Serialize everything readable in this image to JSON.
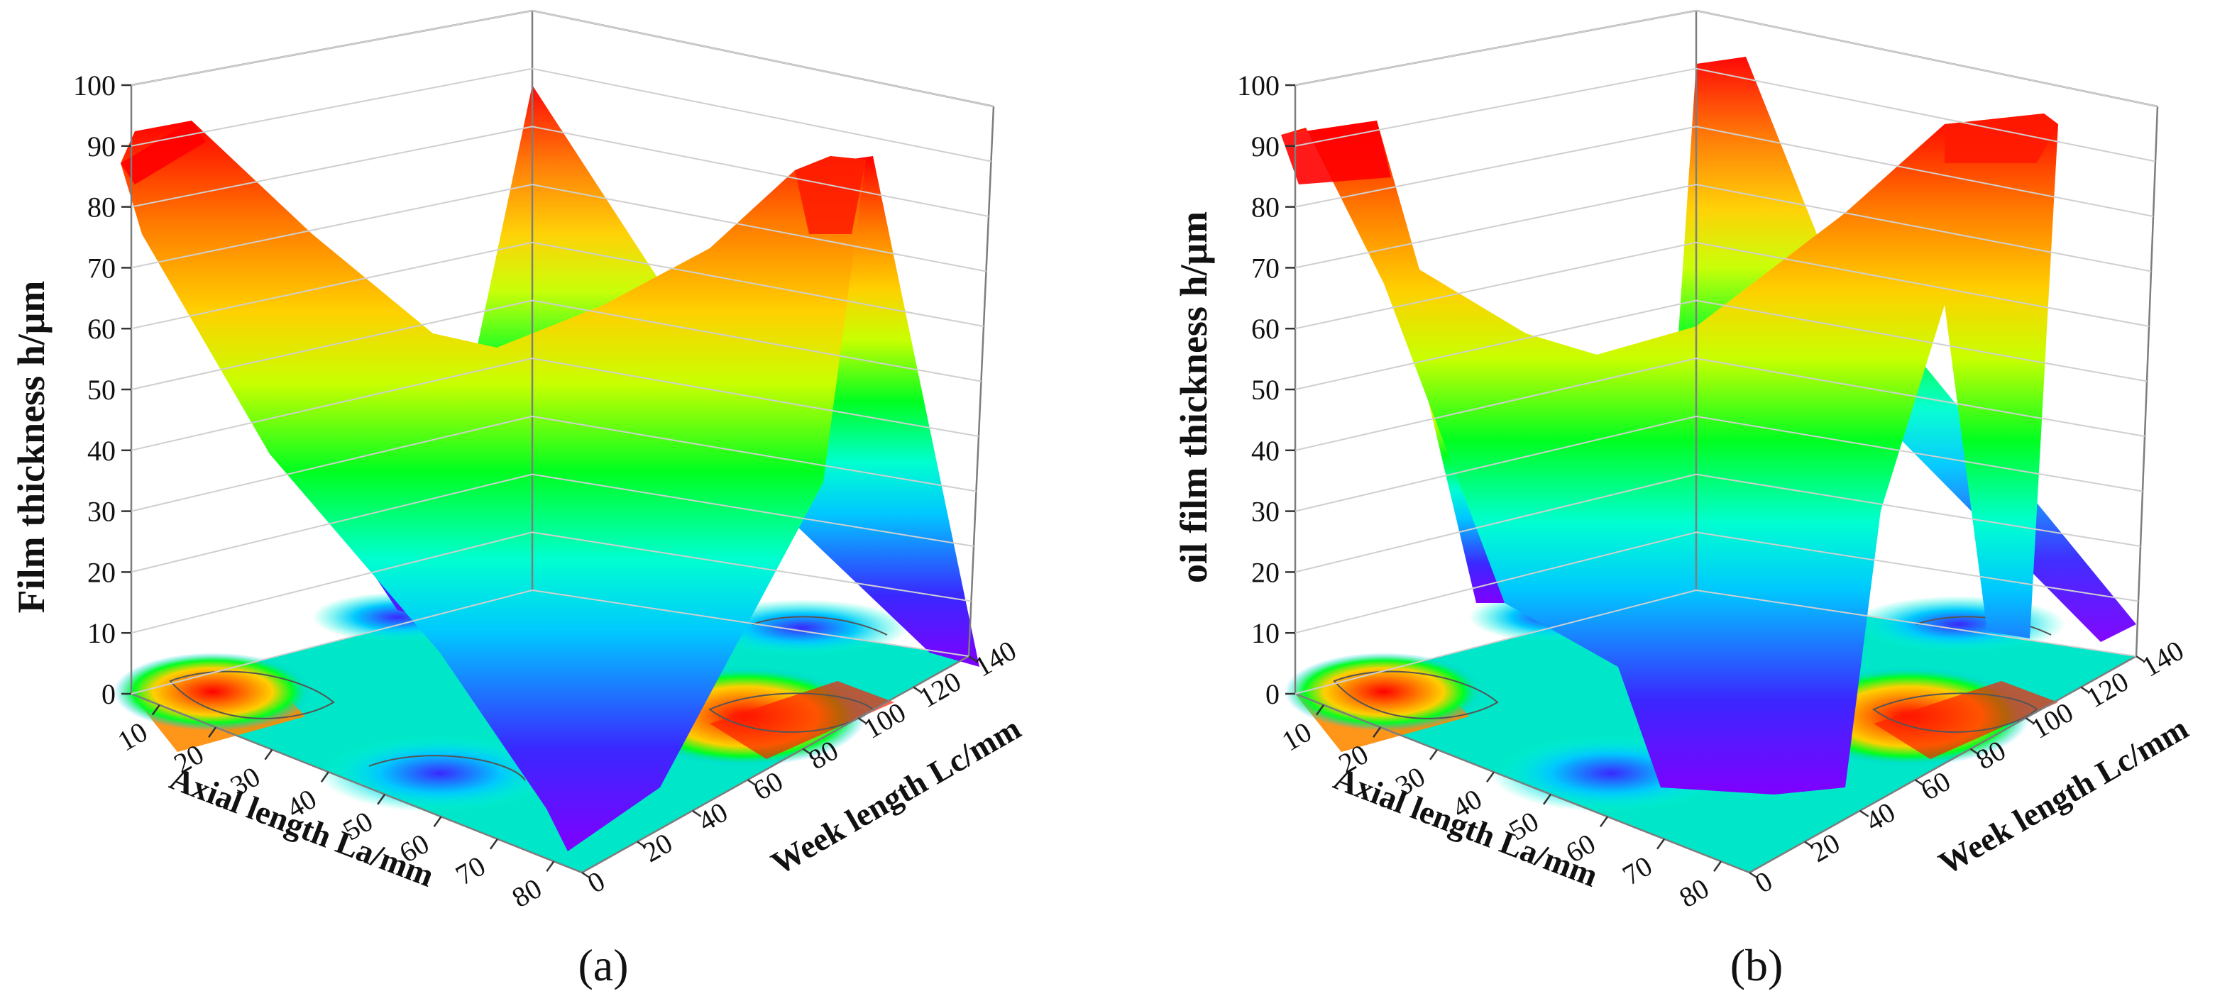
{
  "colors": {
    "colormap": [
      "#7f00ff",
      "#3a28ff",
      "#00c8ff",
      "#00ffd0",
      "#00ff20",
      "#c8ff00",
      "#ffd000",
      "#ff7a00",
      "#ff0000"
    ],
    "grid": "#cfcfcf",
    "frame": "#7d7d7d"
  },
  "chart_data": [
    {
      "type": "surface3d",
      "panel_label": "(a)",
      "zlabel": "Film thickness  h/μm",
      "xlabel": "Axial length  La/mm",
      "ylabel": "Week length  Lc/mm",
      "x_ticks": [
        10,
        20,
        30,
        40,
        50,
        60,
        70,
        80
      ],
      "y_ticks": [
        0,
        20,
        40,
        60,
        80,
        100,
        120,
        140
      ],
      "z_ticks": [
        0,
        10,
        20,
        30,
        40,
        50,
        60,
        70,
        80,
        90,
        100
      ],
      "xlim": [
        5,
        85
      ],
      "ylim": [
        0,
        140
      ],
      "zlim": [
        0,
        100
      ],
      "contour_projection": true,
      "surface_ridges": [
        {
          "x": [
            5,
            85
          ],
          "y": 5,
          "z": [
            90,
            92
          ]
        },
        {
          "x": [
            5,
            85
          ],
          "y": 70,
          "z": [
            50,
            58
          ]
        },
        {
          "x": [
            5,
            85
          ],
          "y": 135,
          "z": [
            5,
            88
          ]
        }
      ]
    },
    {
      "type": "surface3d",
      "panel_label": "(b)",
      "zlabel": "oil film thickness  h/μm",
      "xlabel": "Axial length  La/mm",
      "ylabel": "Week length  Lc/mm",
      "x_ticks": [
        10,
        20,
        30,
        40,
        50,
        60,
        70,
        80
      ],
      "y_ticks": [
        0,
        20,
        40,
        60,
        80,
        100,
        120,
        140
      ],
      "z_ticks": [
        0,
        10,
        20,
        30,
        40,
        50,
        60,
        70,
        80,
        90,
        100
      ],
      "xlim": [
        5,
        85
      ],
      "ylim": [
        0,
        140
      ],
      "zlim": [
        0,
        100
      ],
      "contour_projection": true,
      "surface_ridges": [
        {
          "x": [
            5,
            85
          ],
          "y": 5,
          "z": [
            93,
            100
          ]
        },
        {
          "x": [
            5,
            85
          ],
          "y": 70,
          "z": [
            5,
            60
          ]
        },
        {
          "x": [
            5,
            85
          ],
          "y": 135,
          "z": [
            8,
            95
          ]
        }
      ]
    }
  ]
}
